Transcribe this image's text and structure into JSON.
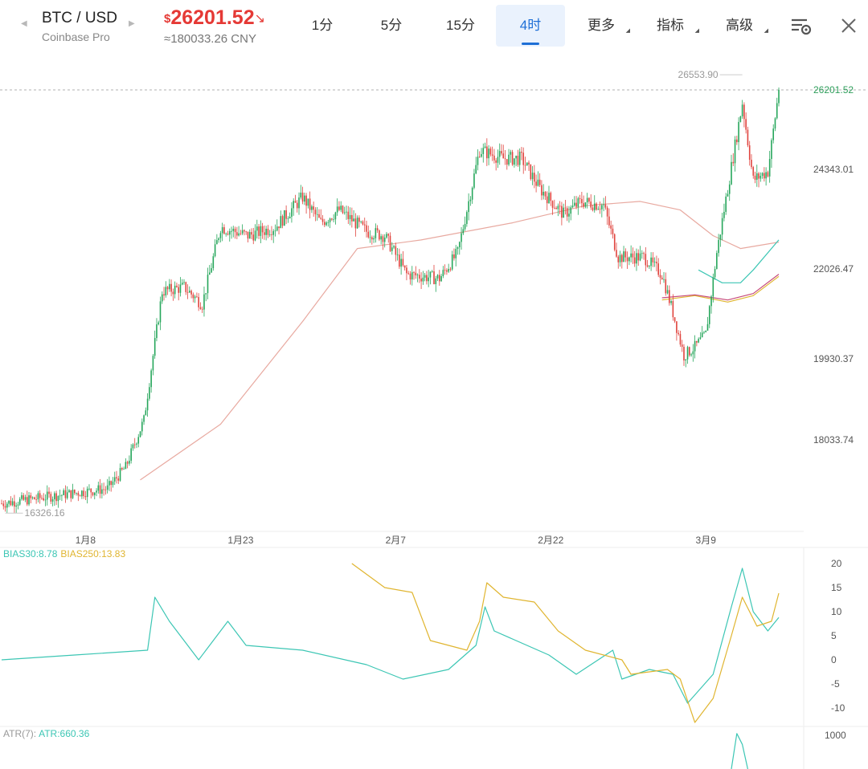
{
  "header": {
    "pair": "BTC / USD",
    "exchange": "Coinbase Pro",
    "price_currency": "$",
    "price": "26201.52",
    "price_arrow": "↘",
    "cny": "≈180033.26 CNY",
    "tabs": [
      {
        "label": "1分",
        "dropdown": false,
        "active": false
      },
      {
        "label": "5分",
        "dropdown": false,
        "active": false
      },
      {
        "label": "15分",
        "dropdown": false,
        "active": false
      },
      {
        "label": "4时",
        "dropdown": false,
        "active": true
      },
      {
        "label": "更多",
        "dropdown": true,
        "active": false
      },
      {
        "label": "指标",
        "dropdown": true,
        "active": false
      },
      {
        "label": "高级",
        "dropdown": true,
        "active": false
      }
    ],
    "icons": {
      "prev": "caret-left-icon",
      "next": "caret-right-icon",
      "settings": "chart-settings-icon",
      "close": "close-icon"
    },
    "colors": {
      "price": "#e53935",
      "active_tab": "#1e6fd6",
      "active_tab_bg": "#eaf2fd"
    }
  },
  "chart_data": [
    {
      "type": "candlestick",
      "y_ticks": [
        "24343.01",
        "22026.47",
        "19930.37",
        "18033.74"
      ],
      "x_ticks": [
        "1月8",
        "1月23",
        "2月7",
        "2月22",
        "3月9"
      ],
      "last_price_label": "26201.52",
      "high_marker": "26553.90",
      "low_marker": "16326.16",
      "ylim": [
        15900,
        27100
      ],
      "ohlc_key_points": [
        {
          "t": 0,
          "c": 16550
        },
        {
          "t": 24,
          "c": 16700
        },
        {
          "t": 58,
          "c": 16900
        },
        {
          "t": 68,
          "c": 17400
        },
        {
          "t": 78,
          "c": 18500
        },
        {
          "t": 88,
          "c": 21500
        },
        {
          "t": 100,
          "c": 21600
        },
        {
          "t": 110,
          "c": 21200
        },
        {
          "t": 120,
          "c": 23000
        },
        {
          "t": 135,
          "c": 22800
        },
        {
          "t": 150,
          "c": 23000
        },
        {
          "t": 165,
          "c": 23700
        },
        {
          "t": 175,
          "c": 23100
        },
        {
          "t": 185,
          "c": 23400
        },
        {
          "t": 200,
          "c": 22900
        },
        {
          "t": 210,
          "c": 22800
        },
        {
          "t": 222,
          "c": 21900
        },
        {
          "t": 240,
          "c": 21800
        },
        {
          "t": 250,
          "c": 22400
        },
        {
          "t": 262,
          "c": 24800
        },
        {
          "t": 275,
          "c": 24600
        },
        {
          "t": 285,
          "c": 24600
        },
        {
          "t": 295,
          "c": 23900
        },
        {
          "t": 308,
          "c": 23300
        },
        {
          "t": 318,
          "c": 23600
        },
        {
          "t": 330,
          "c": 23500
        },
        {
          "t": 338,
          "c": 22300
        },
        {
          "t": 352,
          "c": 22300
        },
        {
          "t": 362,
          "c": 21900
        },
        {
          "t": 368,
          "c": 21000
        },
        {
          "t": 374,
          "c": 20000
        },
        {
          "t": 380,
          "c": 20200
        },
        {
          "t": 386,
          "c": 20500
        },
        {
          "t": 392,
          "c": 22400
        },
        {
          "t": 400,
          "c": 24400
        },
        {
          "t": 406,
          "c": 25900
        },
        {
          "t": 412,
          "c": 24100
        },
        {
          "t": 420,
          "c": 24300
        },
        {
          "t": 426,
          "c": 26201.52
        }
      ],
      "moving_averages": [
        {
          "color": "#e8a9a0",
          "points": [
            {
              "t": 76,
              "c": 17100
            },
            {
              "t": 120,
              "c": 18400
            },
            {
              "t": 165,
              "c": 20800
            },
            {
              "t": 195,
              "c": 22500
            },
            {
              "t": 230,
              "c": 22700
            },
            {
              "t": 280,
              "c": 23100
            },
            {
              "t": 320,
              "c": 23500
            },
            {
              "t": 350,
              "c": 23600
            },
            {
              "t": 372,
              "c": 23400
            },
            {
              "t": 390,
              "c": 22800
            },
            {
              "t": 405,
              "c": 22500
            },
            {
              "t": 426,
              "c": 22650
            }
          ]
        },
        {
          "color": "#3cc6b4",
          "points": [
            {
              "t": 382,
              "c": 22000
            },
            {
              "t": 395,
              "c": 21700
            },
            {
              "t": 405,
              "c": 21700
            },
            {
              "t": 412,
              "c": 22000
            },
            {
              "t": 426,
              "c": 22700
            }
          ]
        },
        {
          "color": "#e0b530",
          "points": [
            {
              "t": 362,
              "c": 21300
            },
            {
              "t": 380,
              "c": 21400
            },
            {
              "t": 398,
              "c": 21250
            },
            {
              "t": 412,
              "c": 21400
            },
            {
              "t": 426,
              "c": 21850
            }
          ]
        },
        {
          "color": "#c64a7a",
          "points": [
            {
              "t": 362,
              "c": 21350
            },
            {
              "t": 380,
              "c": 21420
            },
            {
              "t": 398,
              "c": 21300
            },
            {
              "t": 412,
              "c": 21450
            },
            {
              "t": 426,
              "c": 21900
            }
          ]
        }
      ]
    },
    {
      "type": "line",
      "legend": [
        {
          "label": "BIAS30:8.78",
          "color": "#3cc6b4"
        },
        {
          "label": "BIAS250:13.83",
          "color": "#e0b530"
        }
      ],
      "y_ticks": [
        "20",
        "15",
        "10",
        "5",
        "0",
        "-5",
        "-10"
      ],
      "ylim": [
        -13,
        22
      ],
      "series": [
        {
          "color": "#3cc6b4",
          "points": [
            {
              "t": 0,
              "c": 0
            },
            {
              "t": 40,
              "c": 1
            },
            {
              "t": 80,
              "c": 2
            },
            {
              "t": 84,
              "c": 13
            },
            {
              "t": 92,
              "c": 8
            },
            {
              "t": 108,
              "c": 0
            },
            {
              "t": 124,
              "c": 8
            },
            {
              "t": 134,
              "c": 3
            },
            {
              "t": 165,
              "c": 2
            },
            {
              "t": 200,
              "c": -1
            },
            {
              "t": 220,
              "c": -4
            },
            {
              "t": 245,
              "c": -2
            },
            {
              "t": 260,
              "c": 3
            },
            {
              "t": 265,
              "c": 11
            },
            {
              "t": 270,
              "c": 6
            },
            {
              "t": 300,
              "c": 1
            },
            {
              "t": 315,
              "c": -3
            },
            {
              "t": 335,
              "c": 2
            },
            {
              "t": 340,
              "c": -4
            },
            {
              "t": 355,
              "c": -2
            },
            {
              "t": 368,
              "c": -3
            },
            {
              "t": 376,
              "c": -9
            },
            {
              "t": 390,
              "c": -3
            },
            {
              "t": 400,
              "c": 11
            },
            {
              "t": 406,
              "c": 19
            },
            {
              "t": 412,
              "c": 10
            },
            {
              "t": 420,
              "c": 6
            },
            {
              "t": 426,
              "c": 8.78
            }
          ]
        },
        {
          "color": "#e0b530",
          "points": [
            {
              "t": 192,
              "c": 20
            },
            {
              "t": 210,
              "c": 15
            },
            {
              "t": 225,
              "c": 14
            },
            {
              "t": 235,
              "c": 4
            },
            {
              "t": 255,
              "c": 2
            },
            {
              "t": 262,
              "c": 8
            },
            {
              "t": 266,
              "c": 16
            },
            {
              "t": 275,
              "c": 13
            },
            {
              "t": 292,
              "c": 12
            },
            {
              "t": 305,
              "c": 6
            },
            {
              "t": 320,
              "c": 2
            },
            {
              "t": 340,
              "c": 0
            },
            {
              "t": 345,
              "c": -3
            },
            {
              "t": 365,
              "c": -2
            },
            {
              "t": 372,
              "c": -4
            },
            {
              "t": 380,
              "c": -13
            },
            {
              "t": 390,
              "c": -8
            },
            {
              "t": 400,
              "c": 5
            },
            {
              "t": 406,
              "c": 13
            },
            {
              "t": 414,
              "c": 7
            },
            {
              "t": 422,
              "c": 8
            },
            {
              "t": 426,
              "c": 13.83
            }
          ]
        }
      ]
    },
    {
      "type": "line",
      "legend": [
        {
          "label": "ATR(7):",
          "color": "#999999"
        },
        {
          "label": "ATR:660.36",
          "color": "#3cc6b4"
        }
      ],
      "y_ticks": [
        "1000"
      ],
      "ylim": [
        560,
        1060
      ],
      "series": [
        {
          "color": "#3cc6b4",
          "points": [
            {
              "t": 400,
              "c": 560
            },
            {
              "t": 403,
              "c": 1020
            },
            {
              "t": 406,
              "c": 880
            },
            {
              "t": 409,
              "c": 560
            }
          ]
        }
      ]
    }
  ]
}
